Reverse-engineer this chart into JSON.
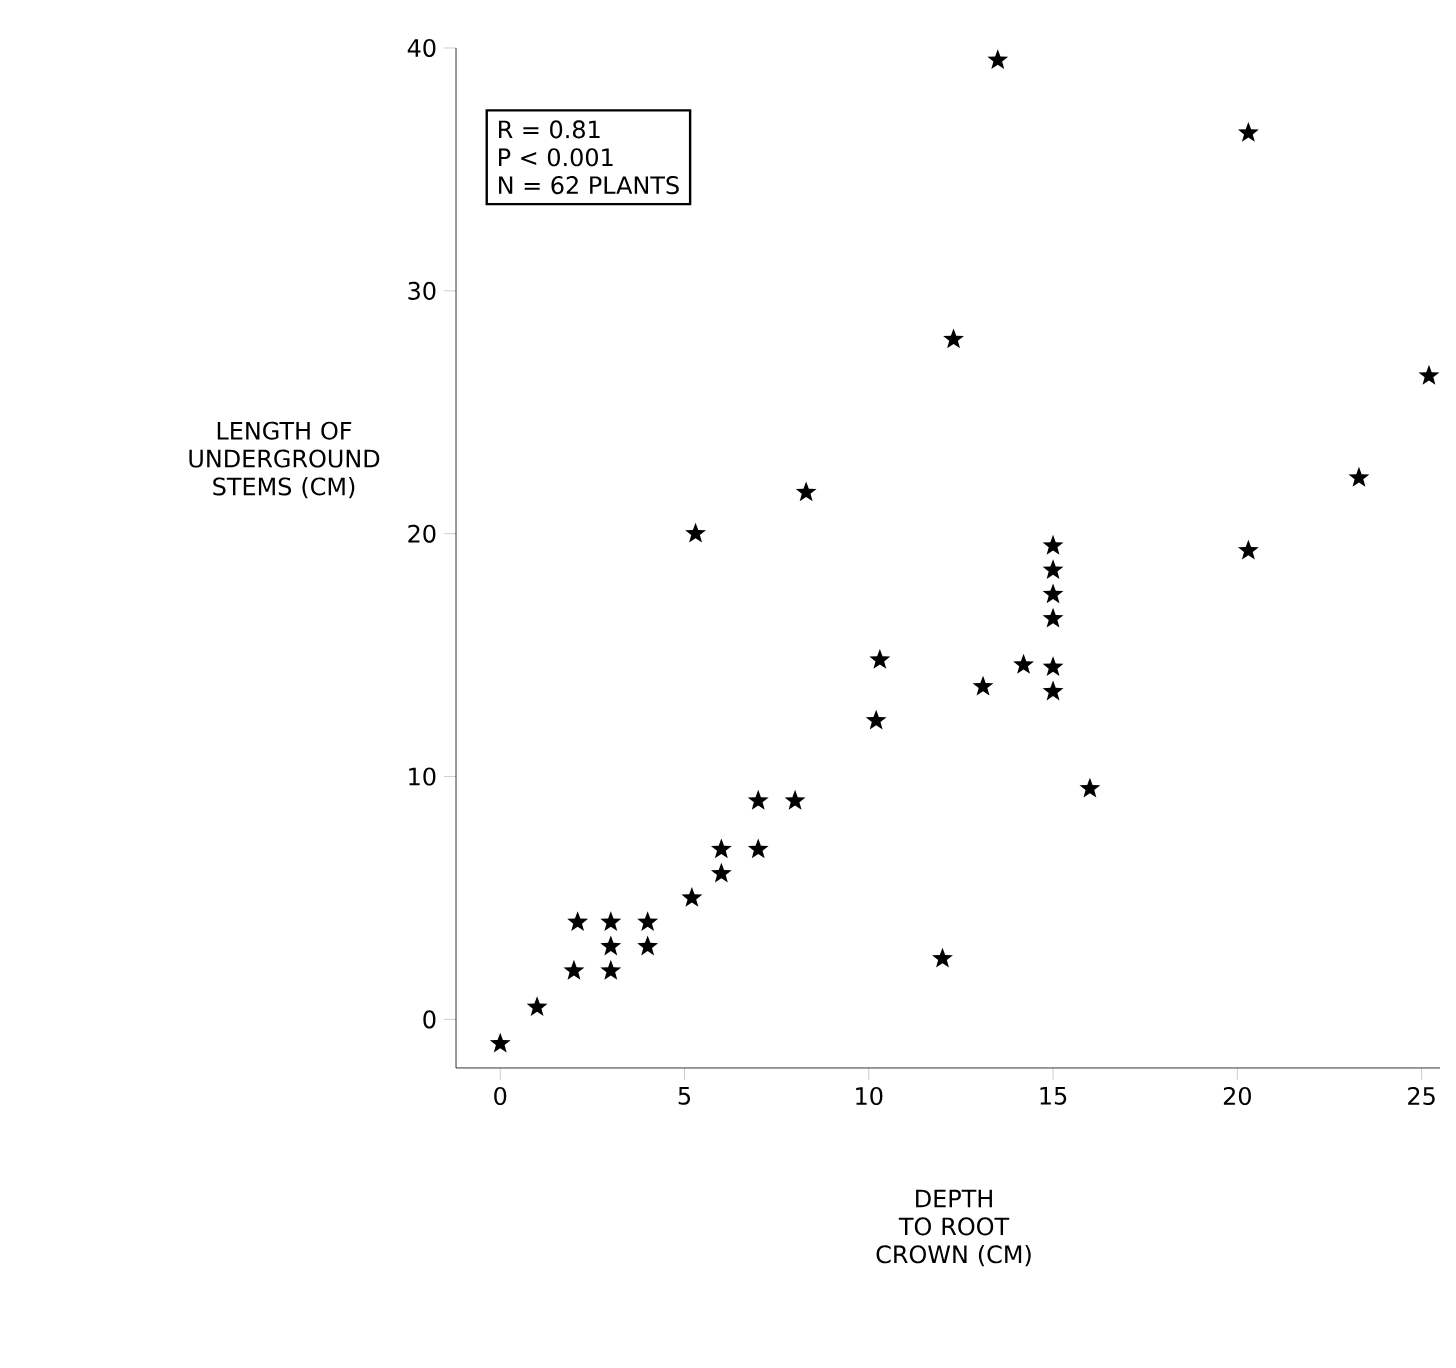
{
  "chart_data": {
    "type": "scatter",
    "xlabel": "DEPTH TO ROOT CROWN (CM)",
    "ylabel": "LENGTH OF UNDERGROUND STEMS (CM)",
    "annotations": [
      "R = 0.81",
      "P < 0.001",
      "N = 62 PLANTS"
    ],
    "xlim": [
      -1.2,
      25.5
    ],
    "ylim": [
      -2,
      40
    ],
    "xticks": [
      0,
      5,
      10,
      15,
      20,
      25
    ],
    "yticks": [
      0,
      10,
      20,
      30,
      40
    ],
    "marker": "star",
    "grid": false,
    "series": [
      {
        "color": "#000000",
        "x": [
          0,
          1,
          2,
          2.1,
          3,
          3,
          3,
          4,
          4,
          5.2,
          6,
          6,
          7,
          7,
          8,
          5.3,
          8.3,
          10.2,
          10.3,
          12,
          13.1,
          14.2,
          15,
          15,
          15,
          15,
          15,
          15,
          16,
          12.3,
          13.5,
          20.3,
          20.3,
          23.3,
          25.2
        ],
        "values": [
          -1,
          0.5,
          2,
          4,
          4,
          3,
          2,
          4,
          3,
          5,
          6,
          7,
          7,
          9,
          9,
          20,
          21.7,
          12.3,
          14.8,
          2.5,
          13.7,
          14.6,
          13.5,
          14.5,
          16.5,
          17.5,
          18.5,
          19.5,
          9.5,
          28,
          39.5,
          36.5,
          19.3,
          22.3,
          26.5
        ]
      }
    ]
  }
}
